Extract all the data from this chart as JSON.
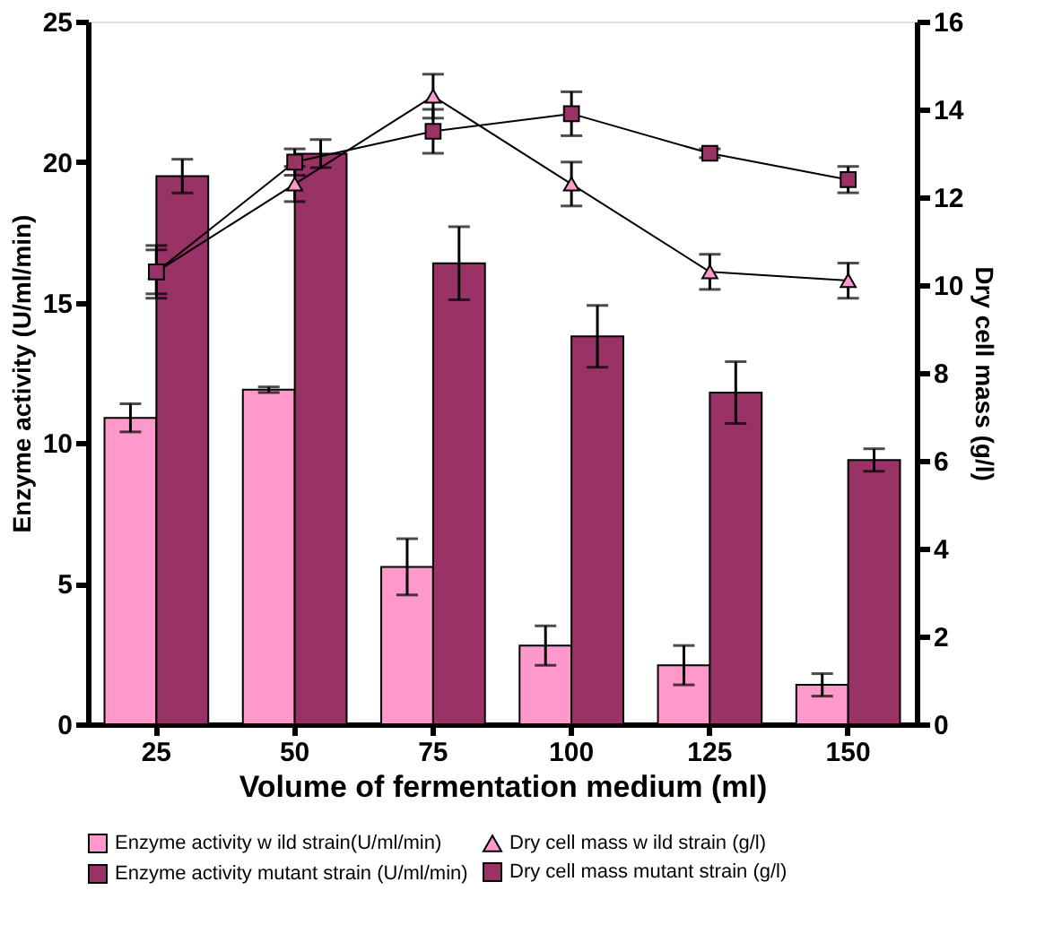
{
  "chart_data": {
    "type": "bar",
    "xlabel": "Volume of fermentation medium (ml)",
    "ylabel": "Enzyme activity (U/ml/min)",
    "y2label": "Dry cell mass (g/l)",
    "categories": [
      "25",
      "50",
      "75",
      "100",
      "125",
      "150"
    ],
    "series": [
      {
        "name": "Enzyme activity w ild strain(U/ml/min)",
        "color": "#ff99cc",
        "values": [
          10.9,
          11.9,
          5.6,
          2.8,
          2.1,
          1.4
        ],
        "errors": [
          0.5,
          0.1,
          1.0,
          0.7,
          0.7,
          0.4
        ]
      },
      {
        "name": "Enzyme activity mutant strain (U/ml/min)",
        "color": "#993366",
        "values": [
          19.5,
          20.3,
          16.4,
          13.8,
          11.8,
          9.4
        ],
        "errors": [
          0.6,
          0.5,
          1.3,
          1.1,
          1.1,
          0.4
        ]
      },
      {
        "name": "Dry cell mass w ild strain (g/l)",
        "type": "line",
        "axis": "y2",
        "marker": "triangle",
        "color": "#ff99cc",
        "values": [
          10.3,
          12.3,
          14.3,
          12.3,
          10.3,
          10.1
        ],
        "errors": [
          0.5,
          0.4,
          0.5,
          0.5,
          0.4,
          0.4
        ]
      },
      {
        "name": "Dry cell mass mutant strain (g/l)",
        "type": "line",
        "axis": "y2",
        "marker": "square",
        "color": "#993366",
        "values": [
          10.3,
          12.8,
          13.5,
          13.9,
          13.0,
          12.4
        ],
        "errors": [
          0.6,
          0.3,
          0.5,
          0.5,
          0.1,
          0.3
        ]
      }
    ],
    "ylim": [
      0,
      25
    ],
    "yticks": [
      0,
      5,
      10,
      15,
      20,
      25
    ],
    "y2lim": [
      0,
      16
    ],
    "y2ticks": [
      0,
      2,
      4,
      6,
      8,
      10,
      12,
      14,
      16
    ],
    "grid": false,
    "legend": "bottom",
    "line_style": "solid"
  }
}
